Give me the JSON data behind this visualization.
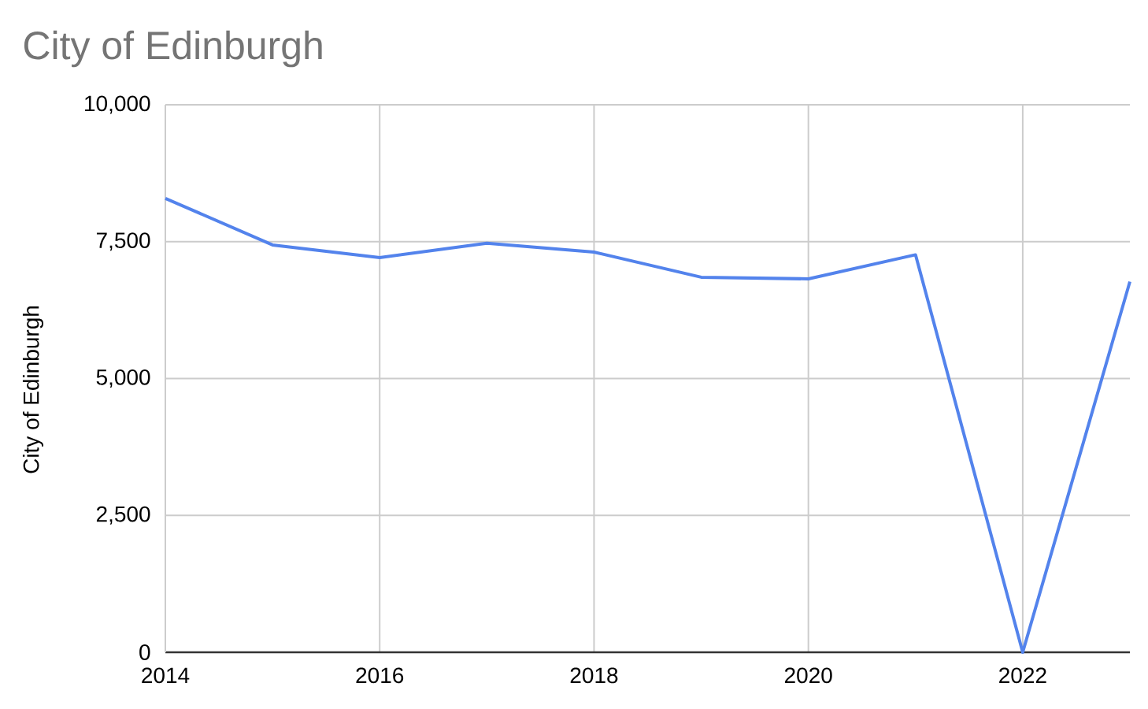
{
  "chart_data": {
    "type": "line",
    "title": "City of Edinburgh",
    "ylabel": "City of Edinburgh",
    "x": [
      2014,
      2015,
      2016,
      2017,
      2018,
      2019,
      2020,
      2021,
      2022,
      2023
    ],
    "series": [
      {
        "color": "#5383ec",
        "values": [
          8290,
          7440,
          7210,
          7470,
          7310,
          6850,
          6820,
          7260,
          0,
          6770
        ]
      }
    ],
    "xlim": [
      2014,
      2023
    ],
    "xticks": [
      2014,
      2016,
      2018,
      2020,
      2022
    ],
    "ylim": [
      0,
      10000
    ],
    "yticks": [
      0,
      {
        "value": 2500,
        "label": "2,500"
      },
      {
        "value": 5000,
        "label": "5,000"
      },
      {
        "value": 7500,
        "label": "7,500"
      },
      {
        "value": 10000,
        "label": "10,000"
      }
    ],
    "grid": true,
    "marker": "none",
    "line_style": "solid"
  }
}
